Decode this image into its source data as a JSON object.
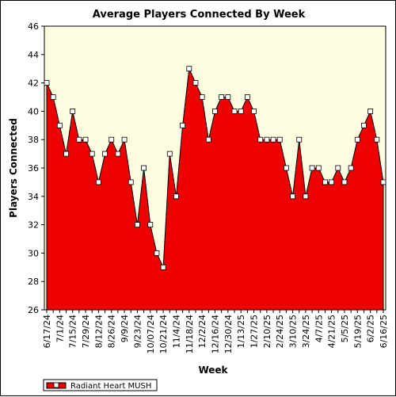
{
  "chart_data": {
    "type": "area",
    "title": "Average Players Connected By Week",
    "xlabel": "Week",
    "ylabel": "Players Connected",
    "ylim": [
      26,
      46
    ],
    "yticks": [
      26,
      28,
      30,
      32,
      34,
      36,
      38,
      40,
      42,
      44,
      46
    ],
    "x": [
      "6/17/24",
      "6/24/24",
      "7/1/24",
      "7/8/24",
      "7/15/24",
      "7/22/24",
      "7/29/24",
      "8/5/24",
      "8/12/24",
      "8/19/24",
      "8/26/24",
      "9/2/24",
      "9/9/24",
      "9/16/24",
      "9/23/24",
      "9/30/24",
      "10/7/24",
      "10/14/24",
      "10/21/24",
      "10/28/24",
      "11/4/24",
      "11/11/24",
      "11/18/24",
      "11/25/24",
      "12/2/24",
      "12/9/24",
      "12/16/24",
      "12/23/24",
      "12/30/24",
      "1/6/25",
      "1/13/25",
      "1/20/25",
      "1/27/25",
      "2/3/25",
      "2/10/25",
      "2/17/25",
      "2/24/25",
      "3/3/25",
      "3/10/25",
      "3/17/25",
      "3/24/25",
      "3/31/25",
      "4/7/25",
      "4/14/25",
      "4/21/25",
      "4/28/25",
      "5/5/25",
      "5/12/25",
      "5/19/25",
      "5/26/25",
      "6/2/25",
      "6/9/25",
      "6/16/25"
    ],
    "x_tick_labels": [
      "6/17/24",
      "7/1/24",
      "7/15/24",
      "7/29/24",
      "8/12/24",
      "8/26/24",
      "9/9/24",
      "9/23/24",
      "10/07/24",
      "10/21/24",
      "11/4/24",
      "11/18/24",
      "12/2/24",
      "12/16/24",
      "12/30/24",
      "1/13/25",
      "1/27/25",
      "2/10/25",
      "2/24/25",
      "3/10/25",
      "3/24/25",
      "4/7/25",
      "4/21/25",
      "5/5/25",
      "5/19/25",
      "6/2/25",
      "6/16/25"
    ],
    "series": [
      {
        "name": "Radiant Heart MUSH",
        "color": "#ee0000",
        "values": [
          42,
          41,
          39,
          37,
          40,
          38,
          38,
          37,
          35,
          37,
          38,
          37,
          38,
          35,
          32,
          36,
          32,
          30,
          29,
          37,
          34,
          39,
          43,
          42,
          41,
          38,
          40,
          41,
          41,
          40,
          40,
          41,
          40,
          38,
          38,
          38,
          38,
          36,
          34,
          38,
          34,
          36,
          36,
          35,
          35,
          36,
          35,
          36,
          38,
          39,
          40,
          38,
          35
        ]
      }
    ],
    "grid": false,
    "legend": "bottom-left",
    "plot_background": "#fdfde0"
  }
}
